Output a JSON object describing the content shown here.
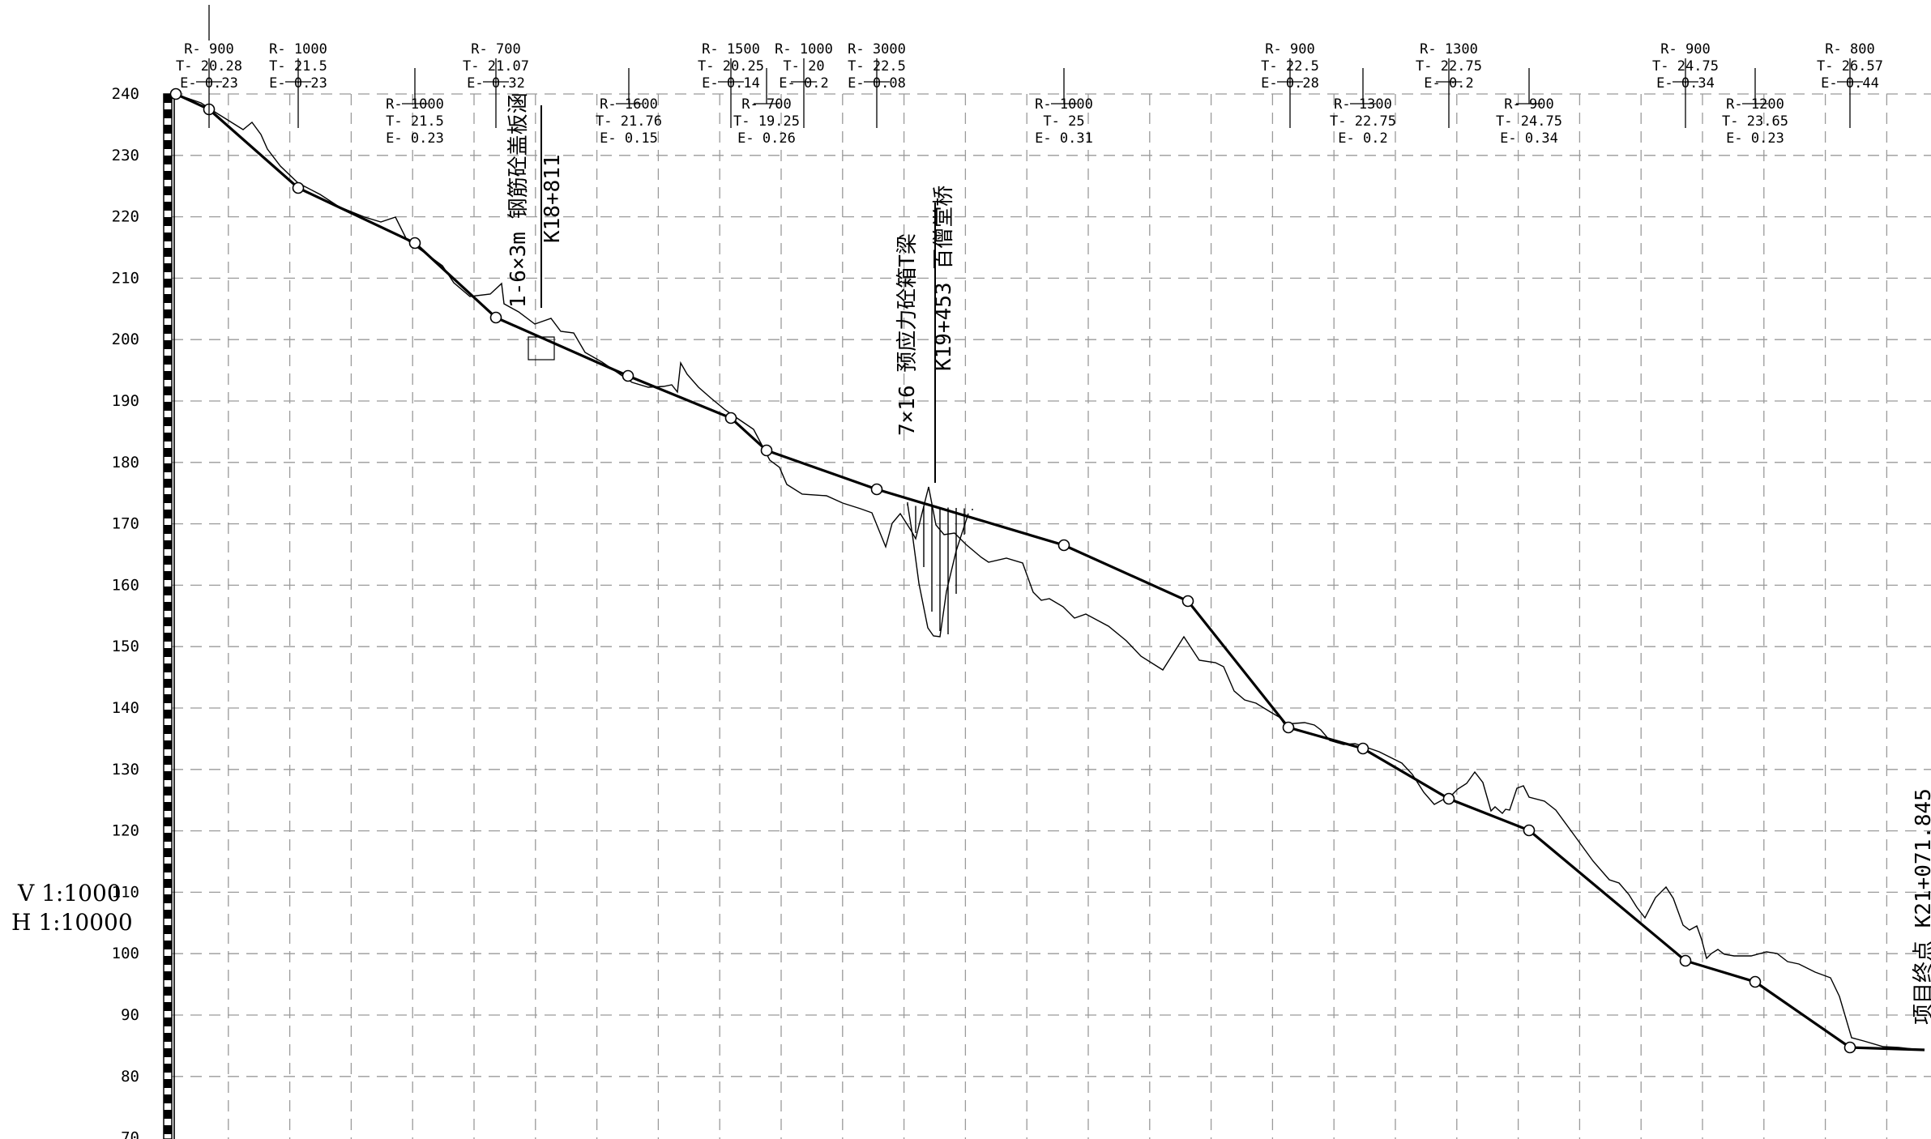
{
  "scale": {
    "vertical": "V 1:1000",
    "horizontal": "H 1:10000"
  },
  "y_axis": {
    "ticks": [
      240,
      230,
      220,
      210,
      200,
      190,
      180,
      170,
      160,
      150,
      140,
      130,
      120,
      110,
      100,
      90,
      80,
      70
    ]
  },
  "curves": [
    {
      "R": "R- 900",
      "T": "T- 20.28",
      "E": "E- 0.23",
      "row": "top"
    },
    {
      "R": "R- 1000",
      "T": "T- 21.5",
      "E": "E- 0.23",
      "row": "top"
    },
    {
      "R": "R- 1000",
      "T": "T- 21.5",
      "E": "E- 0.23",
      "row": "low"
    },
    {
      "R": "R- 700",
      "T": "T- 21.07",
      "E": "E- 0.32",
      "row": "top"
    },
    {
      "R": "R- 1600",
      "T": "T- 21.76",
      "E": "E- 0.15",
      "row": "low"
    },
    {
      "R": "R- 1500",
      "T": "T- 20.25",
      "E": "E- 0.14",
      "row": "top"
    },
    {
      "R": "R- 700",
      "T": "T- 19.25",
      "E": "E- 0.26",
      "row": "low"
    },
    {
      "R": "R- 1000",
      "T": "T- 20",
      "E": "E- 0.2",
      "row": "top"
    },
    {
      "R": "R- 3000",
      "T": "T- 22.5",
      "E": "E- 0.08",
      "row": "top"
    },
    {
      "R": "R- 1000",
      "T": "T- 25",
      "E": "E- 0.31",
      "row": "low"
    },
    {
      "R": "R- 900",
      "T": "T- 22.5",
      "E": "E- 0.28",
      "row": "top"
    },
    {
      "R": "R- 1300",
      "T": "T- 22.75",
      "E": "E- 0.2",
      "row": "low"
    },
    {
      "R": "R- 1300",
      "T": "T- 22.75",
      "E": "E- 0.2",
      "row": "top"
    },
    {
      "R": "R- 900",
      "T": "T- 24.75",
      "E": "E- 0.34",
      "row": "low"
    },
    {
      "R": "R- 900",
      "T": "T- 24.75",
      "E": "E- 0.34",
      "row": "top"
    },
    {
      "R": "R- 1200",
      "T": "T- 23.65",
      "E": "E- 0.23",
      "row": "low"
    },
    {
      "R": "R- 800",
      "T": "T- 26.57",
      "E": "E- 0.44",
      "row": "top"
    }
  ],
  "structures": [
    {
      "name": "1-6×3m 钢筋砼盖板涵",
      "station": "K18+811"
    },
    {
      "name": "7×16 预应力砼箱T梁",
      "station": "K19+453 百僧堂桥"
    }
  ],
  "endpoint": {
    "label": "项目终点 K21+071.845"
  }
}
